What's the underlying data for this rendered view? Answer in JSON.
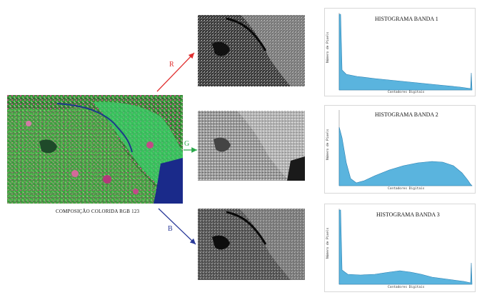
{
  "composite": {
    "caption": "COMPOSIÇÃO COLORIDA RGB 123"
  },
  "arrows": [
    {
      "label": "R",
      "color": "#e03030"
    },
    {
      "label": "G",
      "color": "#2aa84a"
    },
    {
      "label": "B",
      "color": "#2a3a9a"
    }
  ],
  "histograms": [
    {
      "title": "HISTOGRAMA BANDA 1",
      "xlabel": "Contadores Digitais",
      "ylabel": "Número de Pixels"
    },
    {
      "title": "HISTOGRAMA BANDA 2",
      "xlabel": "Contadores Digitais",
      "ylabel": "Número de Pixels"
    },
    {
      "title": "HISTOGRAMA BANDA 3",
      "xlabel": "Contadores Digitais",
      "ylabel": "Número de Pixels"
    }
  ],
  "colors": {
    "histogram_fill": "#5ab4de",
    "histogram_stroke": "#2a7fb0",
    "vegetation": "#37c24a",
    "water": "#1a2a8a"
  }
}
